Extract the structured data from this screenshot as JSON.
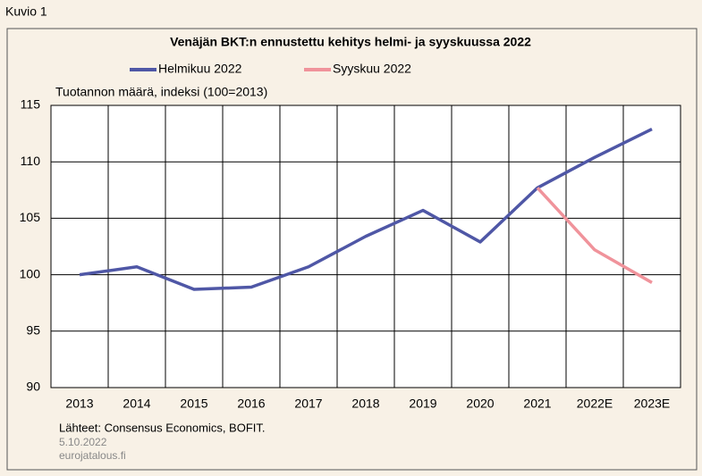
{
  "figure_label": "Kuvio 1",
  "chart_data": {
    "type": "line",
    "title": "Venäjän BKT:n ennustettu kehitys helmi- ja syyskuussa 2022",
    "y_label": "Tuotannon määrä, indeksi (100=2013)",
    "categories": [
      "2013",
      "2014",
      "2015",
      "2016",
      "2017",
      "2018",
      "2019",
      "2020",
      "2021",
      "2022E",
      "2023E"
    ],
    "series": [
      {
        "name": "Helmikuu 2022",
        "color": "#4f57a6",
        "values": [
          100.0,
          100.7,
          98.7,
          98.9,
          100.7,
          103.4,
          105.7,
          102.9,
          107.7,
          110.4,
          112.9
        ]
      },
      {
        "name": "Syyskuu 2022",
        "color": "#f0939b",
        "values": [
          null,
          null,
          null,
          null,
          null,
          null,
          null,
          null,
          107.7,
          102.2,
          99.3
        ]
      }
    ],
    "ylim": [
      90,
      115
    ],
    "yticks": [
      90,
      95,
      100,
      105,
      110,
      115
    ],
    "grid": true,
    "legend": "top"
  },
  "source": "Lähteet: Consensus Economics, BOFIT.",
  "date": "5.10.2022",
  "site": "eurojatalous.fi"
}
